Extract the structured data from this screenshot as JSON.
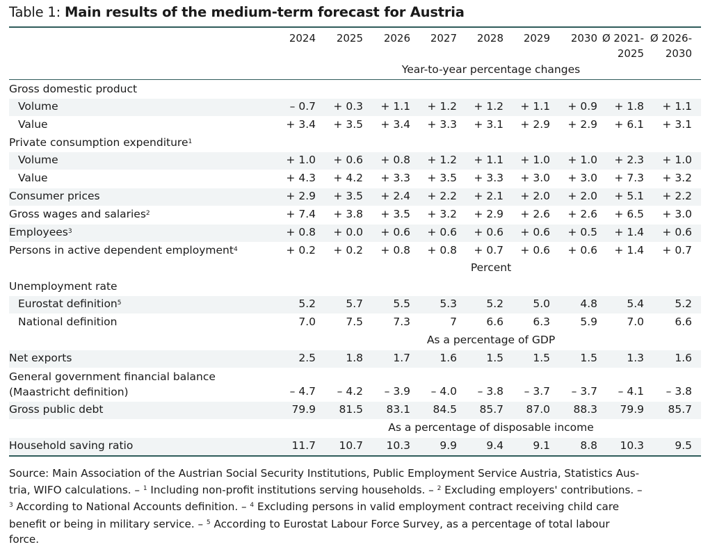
{
  "title": {
    "label": "Table 1:",
    "text": "Main results of the medium-term forecast for Austria"
  },
  "columns": [
    "2024",
    "2025",
    "2026",
    "2027",
    "2028",
    "2029",
    "2030",
    "Ø 2021-",
    "Ø 2026-"
  ],
  "columns_line2": [
    "",
    "",
    "",
    "",
    "",
    "",
    "",
    "2025",
    "2030"
  ],
  "section_labels": {
    "yoy": "Year-to-year percentage changes",
    "percent": "Percent",
    "gdp": "As a percentage of GDP",
    "disposable": "As a percentage of disposable income"
  },
  "rows": {
    "gdp": {
      "label": "Gross domestic product"
    },
    "gdp_volume": {
      "label": "Volume",
      "values": [
        "– 0.7",
        "+ 0.3",
        "+ 1.1",
        "+ 1.2",
        "+ 1.2",
        "+ 1.1",
        "+ 0.9",
        "+ 1.8",
        "+ 1.1"
      ]
    },
    "gdp_value": {
      "label": "Value",
      "values": [
        "+ 3.4",
        "+ 3.5",
        "+ 3.4",
        "+ 3.3",
        "+ 3.1",
        "+ 2.9",
        "+ 2.9",
        "+ 6.1",
        "+ 3.1"
      ]
    },
    "pce": {
      "label": "Private consumption expenditure",
      "fn": "1"
    },
    "pce_volume": {
      "label": "Volume",
      "values": [
        "+ 1.0",
        "+ 0.6",
        "+ 0.8",
        "+ 1.2",
        "+ 1.1",
        "+ 1.0",
        "+ 1.0",
        "+ 2.3",
        "+ 1.0"
      ]
    },
    "pce_value": {
      "label": "Value",
      "values": [
        "+ 4.3",
        "+ 4.2",
        "+ 3.3",
        "+ 3.5",
        "+ 3.3",
        "+ 3.0",
        "+ 3.0",
        "+ 7.3",
        "+ 3.2"
      ]
    },
    "cpi": {
      "label": "Consumer prices",
      "values": [
        "+ 2.9",
        "+ 3.5",
        "+ 2.4",
        "+ 2.2",
        "+ 2.1",
        "+ 2.0",
        "+ 2.0",
        "+ 5.1",
        "+ 2.2"
      ]
    },
    "wages": {
      "label": "Gross wages and salaries",
      "fn": "2",
      "values": [
        "+ 7.4",
        "+ 3.8",
        "+ 3.5",
        "+ 3.2",
        "+ 2.9",
        "+ 2.6",
        "+ 2.6",
        "+ 6.5",
        "+ 3.0"
      ]
    },
    "employees": {
      "label": "Employees",
      "fn": "3",
      "values": [
        "+ 0.8",
        "+ 0.0",
        "+ 0.6",
        "+ 0.6",
        "+ 0.6",
        "+ 0.6",
        "+ 0.5",
        "+ 1.4",
        "+ 0.6"
      ]
    },
    "persons": {
      "label": "Persons in active dependent employment",
      "fn": "4",
      "values": [
        "+ 0.2",
        "+ 0.2",
        "+ 0.8",
        "+ 0.8",
        "+ 0.7",
        "+ 0.6",
        "+ 0.6",
        "+ 1.4",
        "+ 0.7"
      ]
    },
    "unemp": {
      "label": "Unemployment rate"
    },
    "unemp_eurostat": {
      "label": "Eurostat definition",
      "fn": "5",
      "values": [
        "5.2",
        "5.7",
        "5.5",
        "5.3",
        "5.2",
        "5.0",
        "4.8",
        "5.4",
        "5.2"
      ]
    },
    "unemp_national": {
      "label": "National definition",
      "values": [
        "7.0",
        "7.5",
        "7.3",
        "7",
        "6.6",
        "6.3",
        "5.9",
        "7.0",
        "6.6"
      ]
    },
    "net_exports": {
      "label": "Net exports",
      "values": [
        "2.5",
        "1.8",
        "1.7",
        "1.6",
        "1.5",
        "1.5",
        "1.5",
        "1.3",
        "1.6"
      ]
    },
    "gov_balance": {
      "label": "General government financial balance",
      "label2": "(Maastricht definition)",
      "values": [
        "– 4.7",
        "– 4.2",
        "– 3.9",
        "– 4.0",
        "– 3.8",
        "– 3.7",
        "– 3.7",
        "– 4.1",
        "– 3.8"
      ]
    },
    "public_debt": {
      "label": "Gross public debt",
      "values": [
        "79.9",
        "81.5",
        "83.1",
        "84.5",
        "85.7",
        "87.0",
        "88.3",
        "79.9",
        "85.7"
      ]
    },
    "saving": {
      "label": "Household saving ratio",
      "values": [
        "11.7",
        "10.7",
        "10.3",
        "9.9",
        "9.4",
        "9.1",
        "8.8",
        "10.3",
        "9.5"
      ]
    }
  },
  "source": {
    "line1": "Source: Main Association of the Austrian Social Security Institutions, Public Employment Service Austria, Statistics Aus-",
    "line2a": "tria, WIFO calculations. – ",
    "fn1": "1",
    "line2b": " Including non-profit institutions serving households. – ",
    "fn2": "2",
    "line2c": " Excluding employers' contributions. –",
    "fn3": "3",
    "line3a": " According to National Accounts definition. – ",
    "fn4": "4",
    "line3b": " Excluding persons in valid employment contract receiving child care",
    "line4a": "benefit or being in military service. – ",
    "fn5": "5",
    "line4b": " According to Eurostat Labour Force Survey, as a percentage of total labour",
    "line5": "force."
  },
  "colors": {
    "rule": "#2e5b5a",
    "shade": "#f1f4f5"
  }
}
